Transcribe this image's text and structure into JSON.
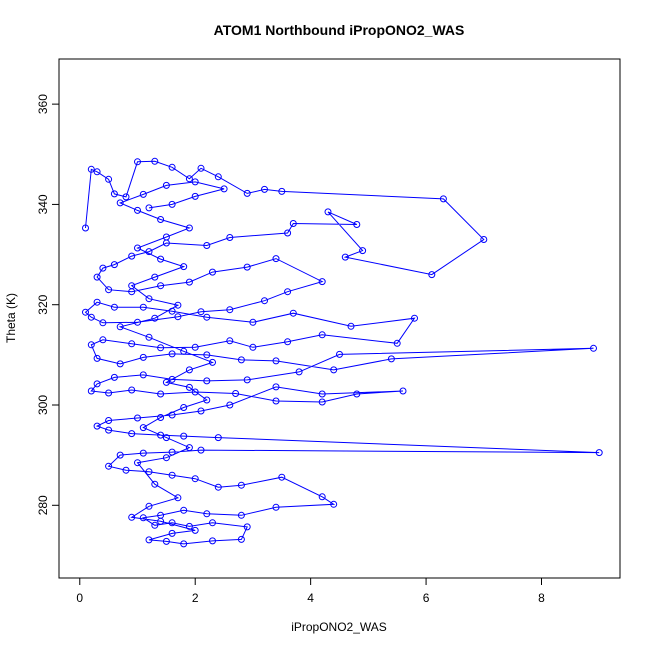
{
  "chart_data": {
    "type": "scatter",
    "title": "ATOM1 Northbound iPropONO2_WAS",
    "xlabel": "iPropONO2_WAS",
    "ylabel": "Theta (K)",
    "xlim": [
      -0.36,
      9.36
    ],
    "ylim": [
      265.5,
      369.0
    ],
    "x_ticks": [
      0,
      2,
      4,
      6,
      8
    ],
    "y_ticks": [
      280,
      300,
      320,
      340,
      360
    ],
    "grid": false,
    "legend": "none",
    "series": [
      {
        "color": "#0000ff",
        "marker": "open-circle",
        "connected": true,
        "points": [
          [
            0.1,
            335.3
          ],
          [
            0.2,
            347.0
          ],
          [
            0.3,
            346.5
          ],
          [
            0.5,
            345.0
          ],
          [
            0.6,
            342.1
          ],
          [
            0.8,
            341.5
          ],
          [
            1.0,
            348.5
          ],
          [
            1.3,
            348.6
          ],
          [
            1.6,
            347.4
          ],
          [
            1.9,
            345.1
          ],
          [
            2.1,
            347.2
          ],
          [
            2.4,
            345.5
          ],
          [
            2.9,
            342.2
          ],
          [
            3.2,
            343.0
          ],
          [
            3.5,
            342.6
          ],
          [
            6.3,
            341.1
          ],
          [
            7.0,
            333.0
          ],
          [
            6.1,
            326.0
          ],
          [
            4.6,
            329.5
          ],
          [
            4.9,
            330.8
          ],
          [
            4.3,
            338.5
          ],
          [
            4.8,
            336.0
          ],
          [
            3.7,
            336.2
          ],
          [
            3.6,
            334.3
          ],
          [
            2.6,
            333.4
          ],
          [
            2.2,
            331.8
          ],
          [
            1.5,
            332.3
          ],
          [
            1.2,
            330.6
          ],
          [
            0.9,
            329.7
          ],
          [
            0.6,
            328.0
          ],
          [
            0.4,
            327.3
          ],
          [
            0.3,
            325.5
          ],
          [
            0.5,
            323.0
          ],
          [
            0.9,
            322.6
          ],
          [
            1.4,
            323.8
          ],
          [
            1.9,
            324.5
          ],
          [
            2.3,
            326.5
          ],
          [
            2.9,
            327.5
          ],
          [
            3.4,
            329.2
          ],
          [
            4.2,
            324.6
          ],
          [
            3.6,
            322.6
          ],
          [
            3.2,
            320.8
          ],
          [
            2.6,
            319.0
          ],
          [
            2.1,
            318.6
          ],
          [
            1.7,
            317.6
          ],
          [
            1.0,
            316.5
          ],
          [
            0.4,
            316.4
          ],
          [
            0.2,
            317.5
          ],
          [
            0.1,
            318.5
          ],
          [
            0.3,
            320.5
          ],
          [
            0.6,
            319.5
          ],
          [
            1.1,
            319.5
          ],
          [
            1.6,
            318.7
          ],
          [
            2.2,
            317.5
          ],
          [
            3.0,
            316.5
          ],
          [
            3.7,
            318.3
          ],
          [
            4.7,
            315.7
          ],
          [
            5.8,
            317.3
          ],
          [
            5.5,
            312.3
          ],
          [
            4.2,
            314.0
          ],
          [
            3.6,
            312.6
          ],
          [
            3.0,
            311.5
          ],
          [
            2.6,
            312.8
          ],
          [
            2.0,
            311.5
          ],
          [
            1.4,
            311.4
          ],
          [
            0.9,
            312.2
          ],
          [
            0.4,
            313.0
          ],
          [
            0.2,
            312.0
          ],
          [
            0.3,
            309.3
          ],
          [
            0.7,
            308.2
          ],
          [
            1.1,
            309.5
          ],
          [
            1.6,
            310.2
          ],
          [
            2.2,
            310.0
          ],
          [
            2.8,
            309.0
          ],
          [
            3.4,
            308.8
          ],
          [
            4.4,
            307.0
          ],
          [
            5.4,
            309.2
          ],
          [
            8.9,
            311.3
          ],
          [
            4.5,
            310.1
          ],
          [
            3.8,
            306.6
          ],
          [
            2.9,
            305.0
          ],
          [
            2.2,
            304.8
          ],
          [
            1.6,
            305.1
          ],
          [
            1.1,
            306.0
          ],
          [
            0.6,
            305.5
          ],
          [
            0.3,
            304.2
          ],
          [
            0.2,
            302.8
          ],
          [
            0.5,
            302.4
          ],
          [
            0.9,
            303.0
          ],
          [
            1.4,
            302.2
          ],
          [
            2.0,
            302.6
          ],
          [
            2.7,
            302.3
          ],
          [
            3.4,
            300.8
          ],
          [
            4.2,
            300.6
          ],
          [
            4.8,
            302.2
          ],
          [
            5.6,
            302.8
          ],
          [
            4.2,
            302.2
          ],
          [
            3.4,
            303.6
          ],
          [
            2.6,
            300.0
          ],
          [
            2.1,
            298.8
          ],
          [
            1.6,
            298.0
          ],
          [
            1.0,
            297.4
          ],
          [
            0.5,
            296.9
          ],
          [
            0.3,
            295.8
          ],
          [
            0.5,
            295.0
          ],
          [
            0.9,
            294.3
          ],
          [
            1.4,
            294.0
          ],
          [
            1.8,
            293.8
          ],
          [
            2.4,
            293.5
          ],
          [
            9.0,
            290.5
          ],
          [
            2.1,
            291.0
          ],
          [
            1.6,
            290.6
          ],
          [
            1.1,
            290.4
          ],
          [
            0.7,
            290.0
          ],
          [
            0.5,
            287.8
          ],
          [
            0.8,
            287.0
          ],
          [
            1.2,
            286.7
          ],
          [
            1.6,
            286.0
          ],
          [
            2.0,
            285.3
          ],
          [
            2.4,
            283.6
          ],
          [
            2.8,
            284.0
          ],
          [
            3.5,
            285.6
          ],
          [
            4.2,
            281.7
          ],
          [
            4.4,
            280.2
          ],
          [
            3.4,
            279.6
          ],
          [
            2.8,
            278.0
          ],
          [
            2.2,
            278.3
          ],
          [
            1.8,
            279.0
          ],
          [
            1.4,
            278.0
          ],
          [
            1.1,
            277.5
          ],
          [
            1.3,
            276.0
          ],
          [
            1.6,
            276.5
          ],
          [
            1.9,
            275.8
          ],
          [
            2.3,
            276.5
          ],
          [
            2.9,
            275.7
          ],
          [
            2.8,
            273.2
          ],
          [
            2.3,
            272.9
          ],
          [
            1.8,
            272.3
          ],
          [
            1.5,
            272.8
          ],
          [
            1.2,
            273.1
          ],
          [
            1.6,
            274.4
          ],
          [
            2.0,
            275.0
          ],
          [
            1.4,
            276.8
          ],
          [
            0.9,
            277.6
          ],
          [
            1.2,
            279.8
          ],
          [
            1.7,
            281.5
          ],
          [
            1.3,
            284.2
          ],
          [
            1.0,
            288.5
          ],
          [
            1.5,
            289.5
          ],
          [
            1.9,
            291.5
          ],
          [
            1.5,
            293.5
          ],
          [
            1.1,
            295.5
          ],
          [
            1.4,
            297.5
          ],
          [
            1.8,
            299.5
          ],
          [
            2.2,
            301.0
          ],
          [
            1.9,
            303.5
          ],
          [
            1.5,
            304.5
          ],
          [
            1.9,
            307.0
          ],
          [
            2.3,
            308.5
          ],
          [
            1.8,
            310.7
          ],
          [
            1.2,
            313.5
          ],
          [
            0.7,
            315.6
          ],
          [
            1.3,
            317.3
          ],
          [
            1.7,
            319.9
          ],
          [
            1.2,
            321.2
          ],
          [
            0.9,
            323.8
          ],
          [
            1.3,
            325.5
          ],
          [
            1.8,
            327.6
          ],
          [
            1.4,
            329.1
          ],
          [
            1.0,
            331.3
          ],
          [
            1.5,
            333.5
          ],
          [
            1.9,
            335.3
          ],
          [
            1.4,
            337.0
          ],
          [
            1.0,
            338.8
          ],
          [
            0.7,
            340.3
          ],
          [
            1.1,
            342.0
          ],
          [
            1.5,
            343.8
          ],
          [
            2.0,
            344.5
          ],
          [
            2.5,
            343.1
          ],
          [
            2.0,
            341.6
          ],
          [
            1.6,
            340.0
          ],
          [
            1.2,
            339.3
          ]
        ]
      }
    ]
  }
}
